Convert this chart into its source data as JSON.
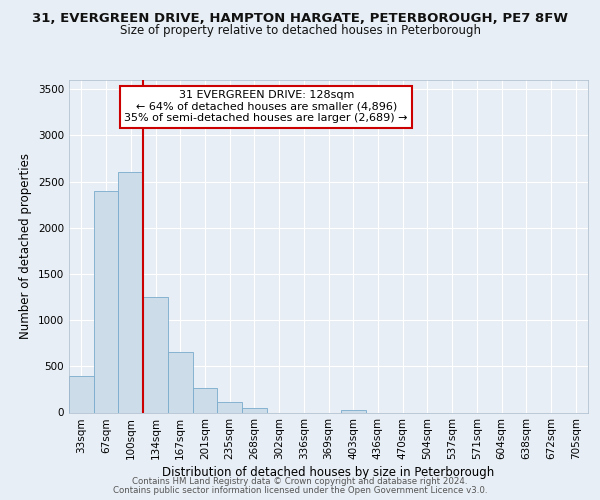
{
  "title_line1": "31, EVERGREEN DRIVE, HAMPTON HARGATE, PETERBOROUGH, PE7 8FW",
  "title_line2": "Size of property relative to detached houses in Peterborough",
  "xlabel": "Distribution of detached houses by size in Peterborough",
  "ylabel": "Number of detached properties",
  "bar_labels": [
    "33sqm",
    "67sqm",
    "100sqm",
    "134sqm",
    "167sqm",
    "201sqm",
    "235sqm",
    "268sqm",
    "302sqm",
    "336sqm",
    "369sqm",
    "403sqm",
    "436sqm",
    "470sqm",
    "504sqm",
    "537sqm",
    "571sqm",
    "604sqm",
    "638sqm",
    "672sqm",
    "705sqm"
  ],
  "bar_values": [
    400,
    2400,
    2600,
    1250,
    650,
    260,
    110,
    50,
    0,
    0,
    0,
    30,
    0,
    0,
    0,
    0,
    0,
    0,
    0,
    0,
    0
  ],
  "bar_color": "#ccdce8",
  "bar_edge_color": "#7aabcc",
  "red_line_x": 2.5,
  "annotation_title": "31 EVERGREEN DRIVE: 128sqm",
  "annotation_line2": "← 64% of detached houses are smaller (4,896)",
  "annotation_line3": "35% of semi-detached houses are larger (2,689) →",
  "annotation_box_facecolor": "#ffffff",
  "annotation_box_edgecolor": "#cc0000",
  "red_line_color": "#cc0000",
  "ylim": [
    0,
    3600
  ],
  "yticks": [
    0,
    500,
    1000,
    1500,
    2000,
    2500,
    3000,
    3500
  ],
  "footer_line1": "Contains HM Land Registry data © Crown copyright and database right 2024.",
  "footer_line2": "Contains public sector information licensed under the Open Government Licence v3.0.",
  "background_color": "#e8eef5",
  "plot_background": "#e8eef5",
  "grid_color": "#ffffff",
  "title1_fontsize": 9.5,
  "title2_fontsize": 8.5,
  "xlabel_fontsize": 8.5,
  "ylabel_fontsize": 8.5,
  "tick_fontsize": 7.5,
  "footer_fontsize": 6.2,
  "annotation_fontsize": 8.0
}
